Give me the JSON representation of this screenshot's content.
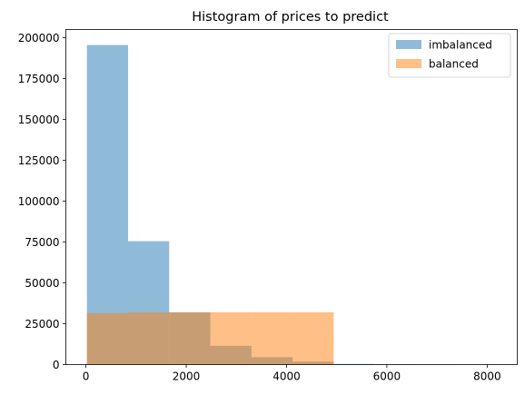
{
  "chart_data": {
    "type": "histogram",
    "title": "Histogram of prices to predict",
    "xlabel": "",
    "ylabel": "",
    "xlim": [
      -400,
      8600
    ],
    "ylim": [
      0,
      205000
    ],
    "xticks": [
      0,
      2000,
      4000,
      6000,
      8000
    ],
    "yticks": [
      0,
      25000,
      50000,
      75000,
      100000,
      125000,
      150000,
      175000,
      200000
    ],
    "legend_position": "upper right",
    "series": [
      {
        "name": "imbalanced",
        "color": "#1f77b4",
        "opacity": 0.5,
        "bins": [
          {
            "x0": 20,
            "x1": 840,
            "value": 195500
          },
          {
            "x0": 840,
            "x1": 1660,
            "value": 75500
          },
          {
            "x0": 1660,
            "x1": 2480,
            "value": 32000
          },
          {
            "x0": 2480,
            "x1": 3300,
            "value": 11500
          },
          {
            "x0": 3300,
            "x1": 4120,
            "value": 4500
          },
          {
            "x0": 4120,
            "x1": 4940,
            "value": 1800
          },
          {
            "x0": 4940,
            "x1": 5760,
            "value": 400
          },
          {
            "x0": 5760,
            "x1": 6580,
            "value": 100
          },
          {
            "x0": 6580,
            "x1": 7400,
            "value": 30
          },
          {
            "x0": 7400,
            "x1": 8220,
            "value": 10
          }
        ]
      },
      {
        "name": "balanced",
        "color": "#ff7f0e",
        "opacity": 0.5,
        "bins": [
          {
            "x0": 20,
            "x1": 840,
            "value": 31500
          },
          {
            "x0": 840,
            "x1": 1660,
            "value": 32000
          },
          {
            "x0": 1660,
            "x1": 2480,
            "value": 32000
          },
          {
            "x0": 2480,
            "x1": 3300,
            "value": 32000
          },
          {
            "x0": 3300,
            "x1": 4120,
            "value": 32000
          },
          {
            "x0": 4120,
            "x1": 4940,
            "value": 32000
          }
        ]
      }
    ]
  }
}
